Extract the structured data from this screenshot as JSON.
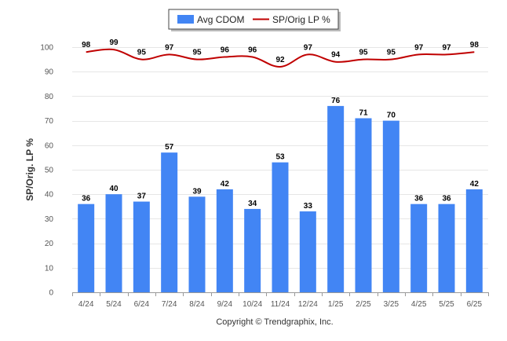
{
  "chart_data": {
    "type": "bar",
    "categories": [
      "4/24",
      "5/24",
      "6/24",
      "7/24",
      "8/24",
      "9/24",
      "10/24",
      "11/24",
      "12/24",
      "1/25",
      "2/25",
      "3/25",
      "4/25",
      "5/25",
      "6/25"
    ],
    "series": [
      {
        "name": "Avg CDOM",
        "type": "bar",
        "color": "#4285f4",
        "values": [
          36,
          40,
          37,
          57,
          39,
          42,
          34,
          53,
          33,
          76,
          71,
          70,
          36,
          36,
          42
        ]
      },
      {
        "name": "SP/Orig LP %",
        "type": "line",
        "color": "#c00000",
        "values": [
          98,
          99,
          95,
          97,
          95,
          96,
          96,
          92,
          97,
          94,
          95,
          95,
          97,
          97,
          98
        ]
      }
    ],
    "ylabel": "SP/Orig. LP %",
    "ylim": [
      0,
      100
    ],
    "yticks": [
      0,
      10,
      20,
      30,
      40,
      50,
      60,
      70,
      80,
      90,
      100
    ],
    "grid": true,
    "legend_position": "top-center"
  },
  "footer": {
    "copyright": "Copyright © Trendgraphix, Inc."
  }
}
